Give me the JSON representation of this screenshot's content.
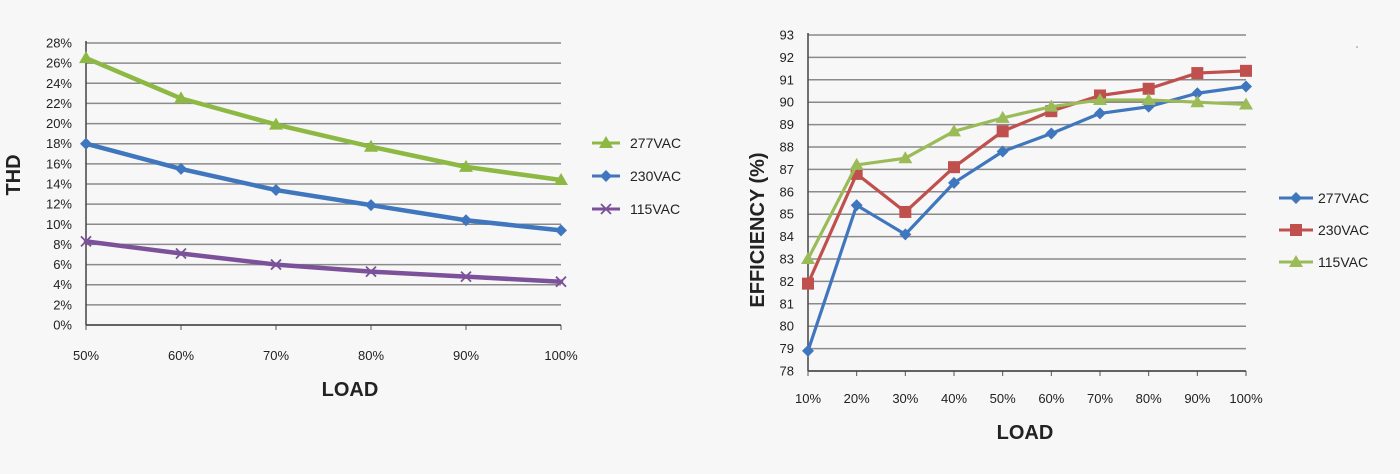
{
  "chart_data": [
    {
      "type": "line",
      "title": "",
      "xlabel": "LOAD",
      "ylabel": "THD",
      "categories": [
        "50%",
        "60%",
        "70%",
        "80%",
        "90%",
        "100%"
      ],
      "yticks": [
        "0%",
        "2%",
        "4%",
        "6%",
        "8%",
        "10%",
        "12%",
        "14%",
        "16%",
        "18%",
        "20%",
        "22%",
        "24%",
        "26%",
        "28%"
      ],
      "ylim": [
        0,
        28
      ],
      "grid": true,
      "legend_position": "right",
      "series": [
        {
          "name": "277VAC",
          "color": "#8db843",
          "marker": "triangle",
          "values": [
            26.5,
            22.5,
            19.9,
            17.7,
            15.7,
            14.4
          ]
        },
        {
          "name": "230VAC",
          "color": "#3f76bd",
          "marker": "diamond",
          "values": [
            18.0,
            15.5,
            13.4,
            11.9,
            10.4,
            9.4
          ]
        },
        {
          "name": "115VAC",
          "color": "#7b529a",
          "marker": "x",
          "values": [
            8.3,
            7.1,
            6.0,
            5.3,
            4.8,
            4.3
          ]
        }
      ]
    },
    {
      "type": "line",
      "title": "",
      "xlabel": "LOAD",
      "ylabel": "EFFICIENCY (%)",
      "categories": [
        "10%",
        "20%",
        "30%",
        "40%",
        "50%",
        "60%",
        "70%",
        "80%",
        "90%",
        "100%"
      ],
      "yticks": [
        "78",
        "79",
        "80",
        "81",
        "82",
        "83",
        "84",
        "85",
        "86",
        "87",
        "88",
        "89",
        "90",
        "91",
        "92",
        "93"
      ],
      "ylim": [
        78,
        93
      ],
      "grid": true,
      "legend_position": "right",
      "series": [
        {
          "name": "277VAC",
          "color": "#3f76bd",
          "marker": "diamond",
          "values": [
            78.9,
            85.4,
            84.1,
            86.4,
            87.8,
            88.6,
            89.5,
            89.8,
            90.4,
            90.7
          ]
        },
        {
          "name": "230VAC",
          "color": "#c0504d",
          "marker": "square",
          "values": [
            81.9,
            86.8,
            85.1,
            87.1,
            88.7,
            89.6,
            90.3,
            90.6,
            91.3,
            91.4
          ]
        },
        {
          "name": "115VAC",
          "color": "#9bbb59",
          "marker": "triangle",
          "values": [
            83.0,
            87.2,
            87.5,
            88.7,
            89.3,
            89.8,
            90.1,
            90.1,
            90.0,
            89.9
          ]
        }
      ]
    }
  ]
}
